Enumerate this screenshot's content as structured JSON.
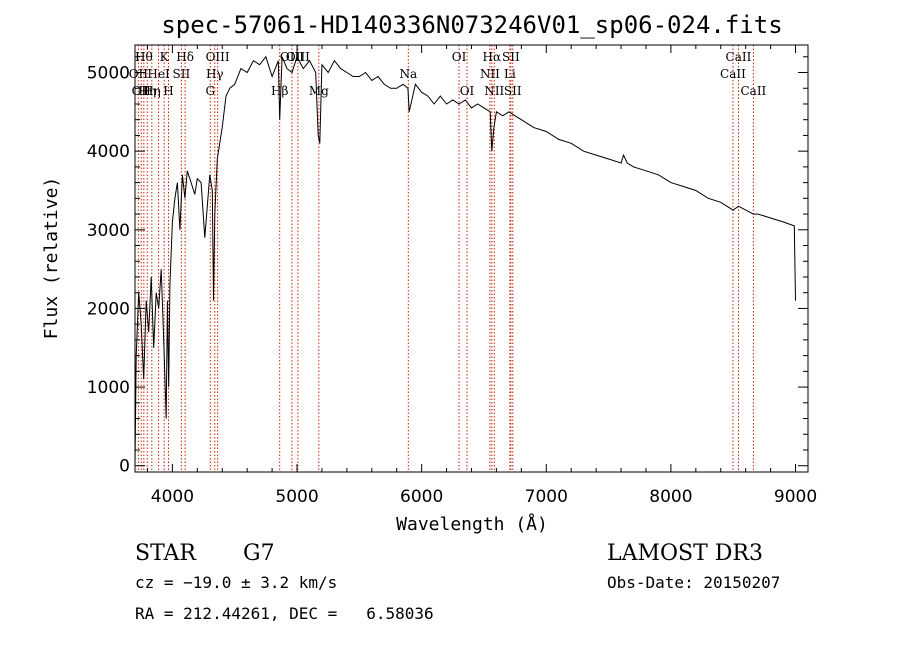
{
  "title": "spec-57061-HD140336N073246V01_sp06-024.fits",
  "chart_data": {
    "type": "line",
    "xlabel": "Wavelength (Å)",
    "ylabel": "Flux (relative)",
    "xlim": [
      3700,
      9100
    ],
    "ylim": [
      -80,
      5350
    ],
    "xticks": [
      "4000",
      "5000",
      "6000",
      "7000",
      "8000",
      "9000"
    ],
    "yticks": [
      "0",
      "1000",
      "2000",
      "3000",
      "4000",
      "5000"
    ],
    "spectrum": {
      "x": [
        3700,
        3710,
        3730,
        3750,
        3770,
        3790,
        3810,
        3830,
        3850,
        3870,
        3890,
        3910,
        3930,
        3950,
        3960,
        3970,
        3980,
        4000,
        4020,
        4040,
        4060,
        4080,
        4100,
        4120,
        4150,
        4180,
        4200,
        4230,
        4260,
        4280,
        4300,
        4320,
        4330,
        4340,
        4360,
        4380,
        4400,
        4430,
        4460,
        4500,
        4550,
        4600,
        4650,
        4700,
        4750,
        4800,
        4850,
        4861,
        4880,
        4920,
        4960,
        5000,
        5050,
        5100,
        5150,
        5170,
        5183,
        5200,
        5250,
        5300,
        5350,
        5400,
        5450,
        5500,
        5550,
        5600,
        5650,
        5700,
        5750,
        5800,
        5850,
        5890,
        5900,
        5950,
        6000,
        6050,
        6100,
        6150,
        6200,
        6250,
        6300,
        6350,
        6400,
        6450,
        6500,
        6550,
        6563,
        6580,
        6600,
        6650,
        6700,
        6750,
        6800,
        6900,
        7000,
        7100,
        7200,
        7300,
        7400,
        7500,
        7600,
        7620,
        7650,
        7700,
        7800,
        7900,
        8000,
        8100,
        8200,
        8300,
        8400,
        8498,
        8542,
        8600,
        8662,
        8700,
        8800,
        8900,
        8990,
        9000
      ],
      "y": [
        0,
        1400,
        2200,
        1800,
        1100,
        2100,
        1700,
        2400,
        1500,
        2200,
        2000,
        2500,
        1600,
        600,
        2100,
        1000,
        2300,
        3100,
        3400,
        3600,
        3000,
        3700,
        3400,
        3750,
        3600,
        3450,
        3650,
        3600,
        2900,
        3300,
        3700,
        3500,
        2100,
        3200,
        3900,
        4100,
        4300,
        4700,
        4800,
        4850,
        5050,
        5000,
        5150,
        5100,
        5200,
        4950,
        5150,
        4400,
        5200,
        5050,
        5000,
        5200,
        5050,
        5150,
        5000,
        4200,
        4100,
        5100,
        5000,
        5150,
        5050,
        5000,
        4950,
        4950,
        5000,
        4900,
        4950,
        4850,
        4800,
        4800,
        4850,
        4800,
        4500,
        4850,
        4750,
        4700,
        4600,
        4700,
        4600,
        4650,
        4600,
        4650,
        4550,
        4600,
        4550,
        4500,
        4000,
        4300,
        4500,
        4450,
        4500,
        4450,
        4400,
        4300,
        4250,
        4150,
        4100,
        4000,
        3950,
        3900,
        3850,
        3950,
        3850,
        3800,
        3750,
        3700,
        3600,
        3550,
        3500,
        3400,
        3350,
        3250,
        3300,
        3250,
        3200,
        3200,
        3150,
        3100,
        3050,
        2100
      ]
    },
    "line_markers": [
      {
        "wl": 3727,
        "labels": [
          "OII"
        ],
        "row": 1
      },
      {
        "wl": 3750,
        "labels": [
          "OII"
        ],
        "row": 2
      },
      {
        "wl": 3771,
        "labels": [
          "Hθ"
        ],
        "row": 0
      },
      {
        "wl": 3798,
        "labels": [
          "Hη"
        ],
        "row": 2
      },
      {
        "wl": 3835,
        "labels": [
          "Hη"
        ],
        "row": 2
      },
      {
        "wl": 3889,
        "labels": [
          "HeI"
        ],
        "row": 1
      },
      {
        "wl": 3934,
        "labels": [
          "K"
        ],
        "row": 0
      },
      {
        "wl": 3969,
        "labels": [
          "H"
        ],
        "row": 2
      },
      {
        "wl": 4072,
        "labels": [
          "SII"
        ],
        "row": 1
      },
      {
        "wl": 4102,
        "labels": [
          "Hδ"
        ],
        "row": 0
      },
      {
        "wl": 4304,
        "labels": [
          "G"
        ],
        "row": 2
      },
      {
        "wl": 4340,
        "labels": [
          "Hγ"
        ],
        "row": 1
      },
      {
        "wl": 4363,
        "labels": [
          "OIII"
        ],
        "row": 0
      },
      {
        "wl": 4861,
        "labels": [
          "Hβ"
        ],
        "row": 2
      },
      {
        "wl": 4959,
        "labels": [
          "OIII"
        ],
        "row": 0
      },
      {
        "wl": 5007,
        "labels": [
          "OIII"
        ],
        "row": 0
      },
      {
        "wl": 5175,
        "labels": [
          "Mg"
        ],
        "row": 2
      },
      {
        "wl": 5893,
        "labels": [
          "Na"
        ],
        "row": 1
      },
      {
        "wl": 6300,
        "labels": [
          "OI"
        ],
        "row": 0
      },
      {
        "wl": 6364,
        "labels": [
          "OI"
        ],
        "row": 2
      },
      {
        "wl": 6548,
        "labels": [
          "NII"
        ],
        "row": 1
      },
      {
        "wl": 6563,
        "labels": [
          "Hα"
        ],
        "row": 0
      },
      {
        "wl": 6583,
        "labels": [
          "NII"
        ],
        "row": 2
      },
      {
        "wl": 6708,
        "labels": [
          "Li"
        ],
        "row": 1
      },
      {
        "wl": 6716,
        "labels": [
          "SII"
        ],
        "row": 0
      },
      {
        "wl": 6731,
        "labels": [
          "SII"
        ],
        "row": 2
      },
      {
        "wl": 8498,
        "labels": [
          "CaII"
        ],
        "row": 1
      },
      {
        "wl": 8542,
        "labels": [
          "CaII"
        ],
        "row": 0
      },
      {
        "wl": 8662,
        "labels": [
          "CaII"
        ],
        "row": 2
      }
    ]
  },
  "info": {
    "object_class": "STAR",
    "subclass": "G7",
    "survey": "LAMOST DR3",
    "cz": "cz = −19.0 ± 3.2 km/s",
    "obs_date": "Obs-Date: 20150207",
    "coords": "RA = 212.44261, DEC =   6.58036"
  },
  "colors": {
    "marker": "#cc2200",
    "line": "#000000"
  }
}
